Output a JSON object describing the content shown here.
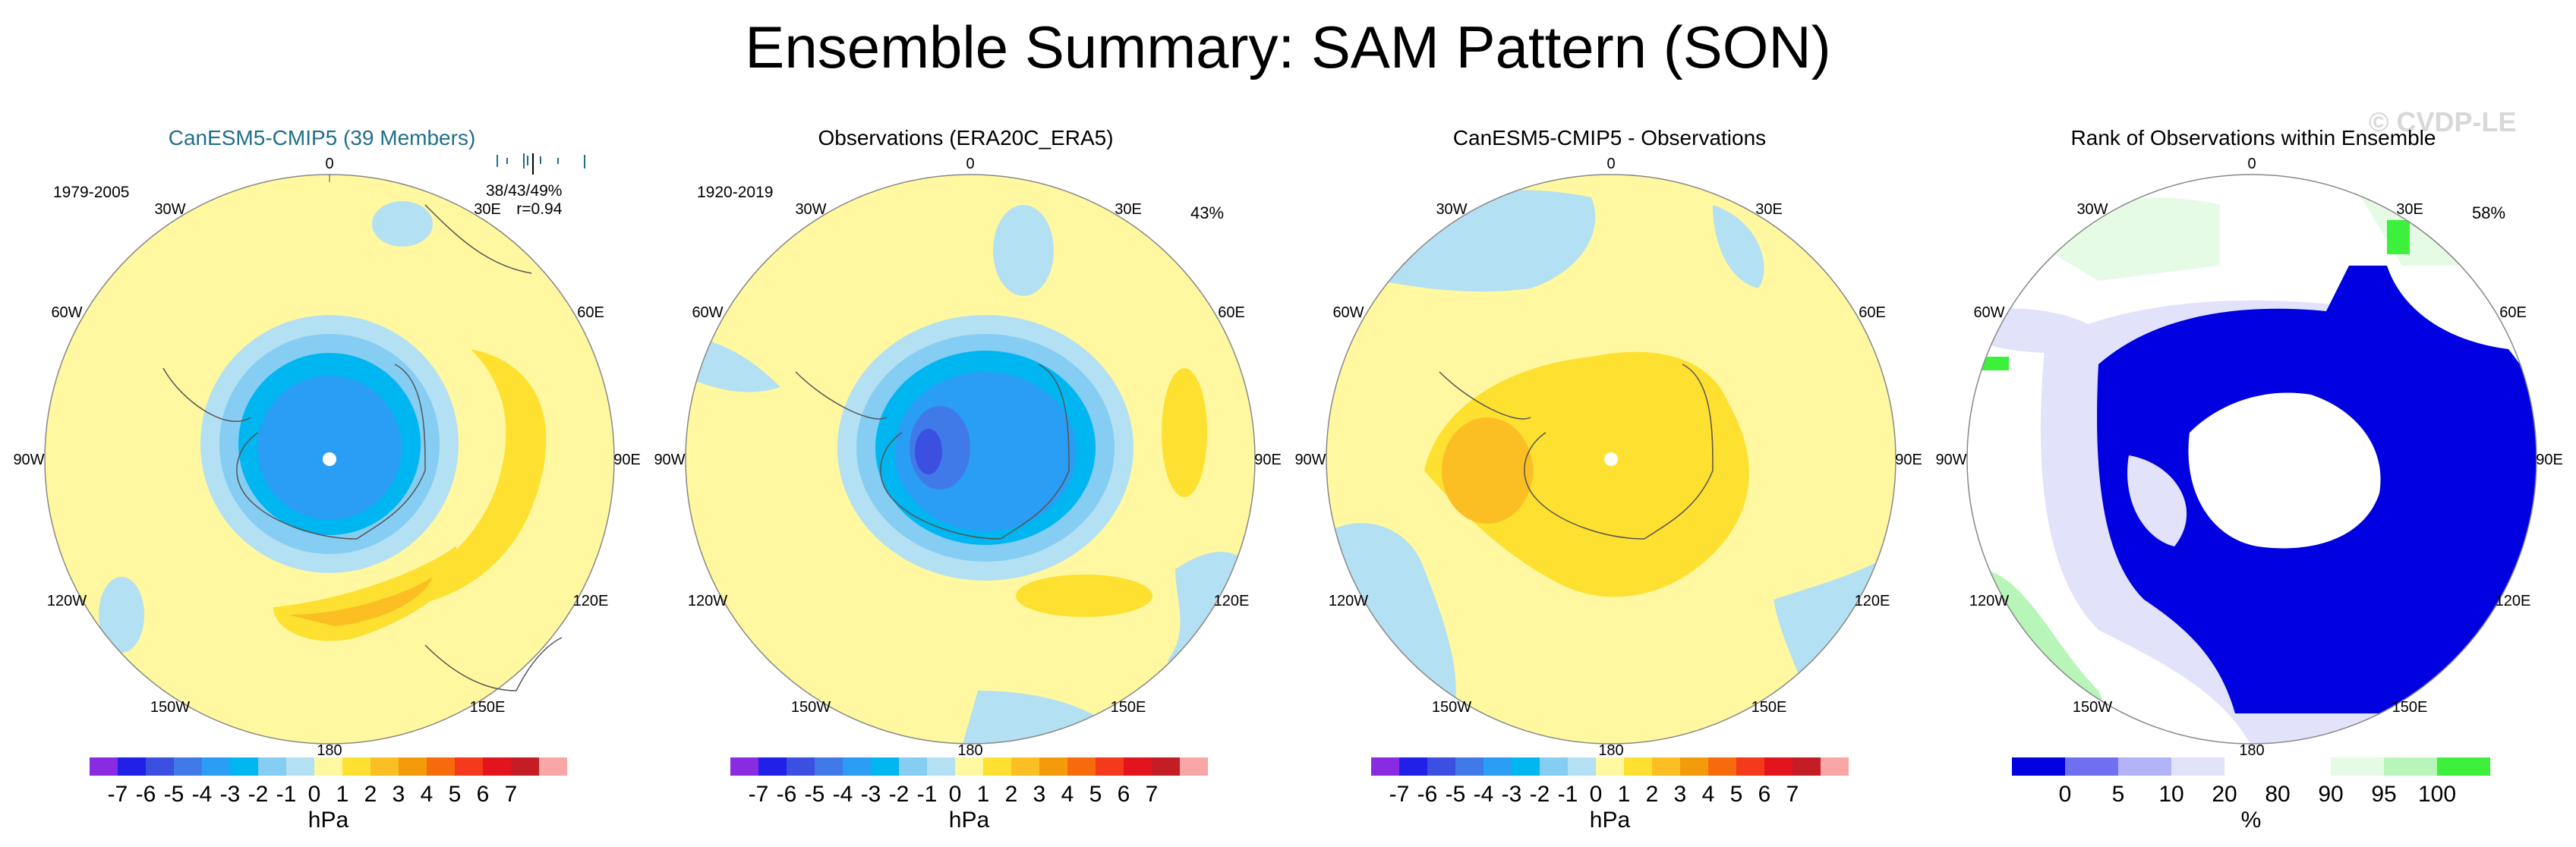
{
  "title": "Ensemble Summary: SAM Pattern (SON)",
  "watermark": "© CVDP-LE",
  "panels": [
    {
      "title": "CanESM5-CMIP5 (39 Members)",
      "title_color": "#1f6f8b",
      "period": "1979-2005",
      "stats_line1": "38/43/49%",
      "stats_line2": "r=0.94",
      "corner_pct": ""
    },
    {
      "title": "Observations (ERA20C_ERA5)",
      "title_color": "#000000",
      "period": "1920-2019",
      "stats_line1": "",
      "stats_line2": "",
      "corner_pct": "43%"
    },
    {
      "title": "CanESM5-CMIP5 - Observations",
      "title_color": "#000000",
      "period": "",
      "stats_line1": "",
      "stats_line2": "",
      "corner_pct": ""
    },
    {
      "title": "Rank of Observations within Ensemble",
      "title_color": "#000000",
      "period": "",
      "stats_line1": "",
      "stats_line2": "",
      "corner_pct": "58%"
    }
  ],
  "longitude_labels": [
    "0",
    "30E",
    "60E",
    "90E",
    "120E",
    "150E",
    "180",
    "150W",
    "120W",
    "90W",
    "60W",
    "30W"
  ],
  "hpa_colorbar": {
    "colors": [
      "#8a2be2",
      "#2020e8",
      "#3b4fe0",
      "#3f7ae8",
      "#2a9df4",
      "#00b6f0",
      "#85cdf2",
      "#b3e0f2",
      "#fff8a0",
      "#fde030",
      "#fbbf24",
      "#f59b0b",
      "#f76b0c",
      "#f43a1a",
      "#e3141d",
      "#c51d25",
      "#f8a6a6"
    ],
    "ticks": [
      "-7",
      "-6",
      "-5",
      "-4",
      "-3",
      "-2",
      "-1",
      "0",
      "1",
      "2",
      "3",
      "4",
      "5",
      "6",
      "7"
    ],
    "units": "hPa"
  },
  "rank_colorbar": {
    "colors": [
      "#0000e0",
      "#6f6ff2",
      "#b3b3f7",
      "#e2e2fa",
      "#ffffff",
      "#ffffff",
      "#e6fbe6",
      "#b8f5b8",
      "#3cf03c"
    ],
    "ticks": [
      "0",
      "5",
      "10",
      "20",
      "80",
      "90",
      "95",
      "100"
    ],
    "units": "%"
  }
}
